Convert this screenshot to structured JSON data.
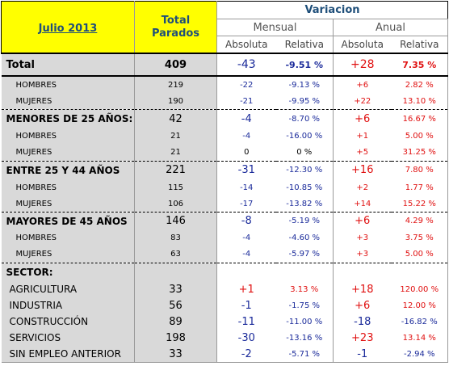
{
  "header": {
    "title": "Julio 2013",
    "total_line1": "Total",
    "total_line2": "Parados",
    "variacion": "Variacion",
    "mensual": "Mensual",
    "anual": "Anual",
    "absoluta": "Absoluta",
    "relativa": "Relativa"
  },
  "rows": [
    {
      "label": "Total",
      "total": "409",
      "m_abs": "-43",
      "m_rel": "-9.51 %",
      "a_abs": "+28",
      "a_rel": "7.35 %"
    },
    {
      "label": "HOMBRES",
      "total": "219",
      "m_abs": "-22",
      "m_rel": "-9.13 %",
      "a_abs": "+6",
      "a_rel": "2.82 %"
    },
    {
      "label": "MUJERES",
      "total": "190",
      "m_abs": "-21",
      "m_rel": "-9.95 %",
      "a_abs": "+22",
      "a_rel": "13.10 %"
    },
    {
      "label": "MENORES DE 25 AÑOS:",
      "total": "42",
      "m_abs": "-4",
      "m_rel": "-8.70 %",
      "a_abs": "+6",
      "a_rel": "16.67 %"
    },
    {
      "label": "HOMBRES",
      "total": "21",
      "m_abs": "-4",
      "m_rel": "-16.00 %",
      "a_abs": "+1",
      "a_rel": "5.00 %"
    },
    {
      "label": "MUJERES",
      "total": "21",
      "m_abs": "0",
      "m_rel": "0 %",
      "a_abs": "+5",
      "a_rel": "31.25 %"
    },
    {
      "label": "ENTRE 25 Y 44 AÑOS",
      "total": "221",
      "m_abs": "-31",
      "m_rel": "-12.30 %",
      "a_abs": "+16",
      "a_rel": "7.80 %"
    },
    {
      "label": "HOMBRES",
      "total": "115",
      "m_abs": "-14",
      "m_rel": "-10.85 %",
      "a_abs": "+2",
      "a_rel": "1.77 %"
    },
    {
      "label": "MUJERES",
      "total": "106",
      "m_abs": "-17",
      "m_rel": "-13.82 %",
      "a_abs": "+14",
      "a_rel": "15.22 %"
    },
    {
      "label": "MAYORES DE 45 AÑOS",
      "total": "146",
      "m_abs": "-8",
      "m_rel": "-5.19 %",
      "a_abs": "+6",
      "a_rel": "4.29 %"
    },
    {
      "label": "HOMBRES",
      "total": "83",
      "m_abs": "-4",
      "m_rel": "-4.60 %",
      "a_abs": "+3",
      "a_rel": "3.75 %"
    },
    {
      "label": "MUJERES",
      "total": "63",
      "m_abs": "-4",
      "m_rel": "-5.97 %",
      "a_abs": "+3",
      "a_rel": "5.00 %"
    },
    {
      "label": "SECTOR:",
      "total": "",
      "m_abs": "",
      "m_rel": "",
      "a_abs": "",
      "a_rel": ""
    },
    {
      "label": "AGRICULTURA",
      "total": "33",
      "m_abs": "+1",
      "m_rel": "3.13 %",
      "a_abs": "+18",
      "a_rel": "120.00 %"
    },
    {
      "label": "INDUSTRIA",
      "total": "56",
      "m_abs": "-1",
      "m_rel": "-1.75 %",
      "a_abs": "+6",
      "a_rel": "12.00 %"
    },
    {
      "label": "CONSTRUCCIÓN",
      "total": "89",
      "m_abs": "-11",
      "m_rel": "-11.00 %",
      "a_abs": "-18",
      "a_rel": "-16.82 %"
    },
    {
      "label": "SERVICIOS",
      "total": "198",
      "m_abs": "-30",
      "m_rel": "-13.16 %",
      "a_abs": "+23",
      "a_rel": "13.14 %"
    },
    {
      "label": "SIN EMPLEO ANTERIOR",
      "total": "33",
      "m_abs": "-2",
      "m_rel": "-5.71 %",
      "a_abs": "-1",
      "a_rel": "-2.94 %"
    }
  ],
  "colors": {
    "negative": "#1a2a9a",
    "positive": "#e01010",
    "header_yellow": "#ffff00",
    "label_bg": "#d9d9d9"
  }
}
